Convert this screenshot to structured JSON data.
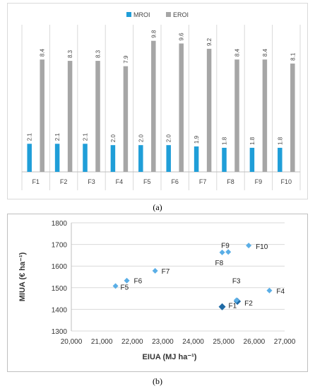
{
  "figure": {
    "caption_a": "(a)",
    "caption_b": "(b)"
  },
  "colors": {
    "mroi": "#1f9ed8",
    "eroi": "#a6a6a6",
    "scatter_light": "#5aaee6",
    "scatter_dark": "#1f6aa5"
  },
  "chart_data": [
    {
      "type": "bar",
      "title": "",
      "xlabel": "",
      "ylabel": "",
      "categories": [
        "F1",
        "F2",
        "F3",
        "F4",
        "F5",
        "F6",
        "F7",
        "F8",
        "F9",
        "F10"
      ],
      "series": [
        {
          "name": "MROI",
          "values": [
            2.1,
            2.1,
            2.1,
            2.0,
            2.0,
            2.0,
            1.9,
            1.8,
            1.8,
            1.8
          ],
          "data_labels": [
            "2.1",
            "2.1",
            "2.1",
            "2.0",
            "2.0",
            "2.0",
            "1.9",
            "1.8",
            "1.8",
            "1.8"
          ]
        },
        {
          "name": "EROI",
          "values": [
            8.4,
            8.3,
            8.3,
            7.9,
            9.8,
            9.6,
            9.2,
            8.4,
            8.4,
            8.1
          ],
          "data_labels": [
            "8.4",
            "8.3",
            "8.3",
            "7.9",
            "9.8",
            "9.6",
            "9.2",
            "8.4",
            "8.4",
            "8.1"
          ]
        }
      ],
      "ylim": [
        0,
        11
      ],
      "legend": "top-center",
      "grid": "vertical category separators"
    },
    {
      "type": "scatter",
      "title": "",
      "xlabel": "EIUA (MJ ha⁻¹)",
      "ylabel": "MIUA (€ ha⁻¹)",
      "xlim": [
        20000,
        27000
      ],
      "ylim": [
        1300,
        1800
      ],
      "xticks": [
        "20,000",
        "21,000",
        "22,000",
        "23,000",
        "24,000",
        "25,000",
        "26,000",
        "27,000"
      ],
      "yticks": [
        "1300",
        "1400",
        "1500",
        "1600",
        "1700",
        "1800"
      ],
      "grid": "horizontal",
      "points": [
        {
          "label": "F1",
          "x": 24950,
          "y": 1412,
          "style": "dark"
        },
        {
          "label": "F2",
          "x": 25450,
          "y": 1437,
          "style": "dark"
        },
        {
          "label": "F3",
          "x": 25420,
          "y": 1442,
          "style": "light"
        },
        {
          "label": "F4",
          "x": 26500,
          "y": 1487,
          "style": "light"
        },
        {
          "label": "F5",
          "x": 21450,
          "y": 1508,
          "style": "light"
        },
        {
          "label": "F6",
          "x": 21820,
          "y": 1533,
          "style": "light"
        },
        {
          "label": "F7",
          "x": 22750,
          "y": 1578,
          "style": "light"
        },
        {
          "label": "F8",
          "x": 24950,
          "y": 1663,
          "style": "light"
        },
        {
          "label": "F9",
          "x": 25150,
          "y": 1665,
          "style": "light"
        },
        {
          "label": "F10",
          "x": 25820,
          "y": 1695,
          "style": "light"
        }
      ]
    }
  ]
}
